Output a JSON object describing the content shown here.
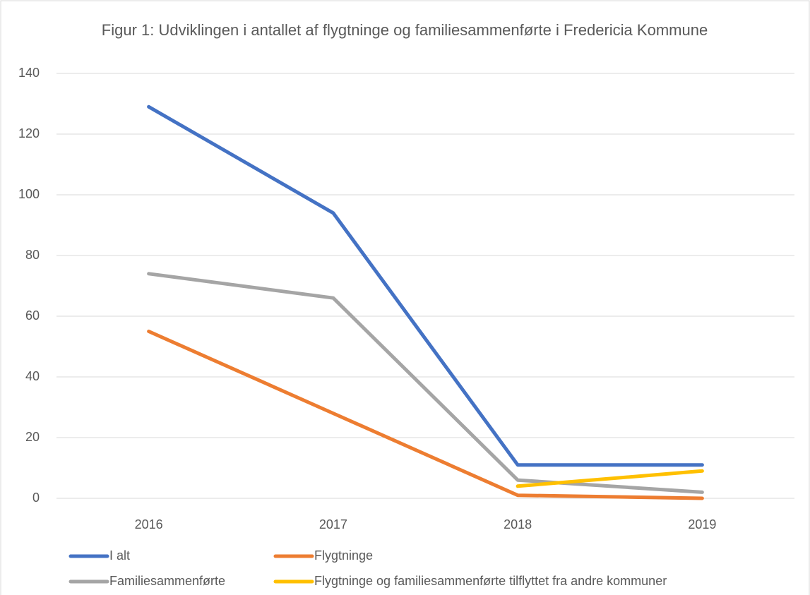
{
  "chart_data": {
    "type": "line",
    "title": "Figur 1: Udviklingen i antallet af flygtninge og familiesammenførte i Fredericia Kommune",
    "categories": [
      "2016",
      "2017",
      "2018",
      "2019"
    ],
    "series": [
      {
        "name": "I alt",
        "color": "#4472c4",
        "values": [
          129,
          94,
          11,
          11
        ]
      },
      {
        "name": "Flygtninge",
        "color": "#ed7d31",
        "values": [
          55,
          28,
          1,
          0
        ]
      },
      {
        "name": "Familiesammenførte",
        "color": "#a5a5a5",
        "values": [
          74,
          66,
          6,
          2
        ]
      },
      {
        "name": "Flygtninge og familiesammenførte tilflyttet fra andre kommuner",
        "color": "#ffc000",
        "values": [
          null,
          null,
          4,
          9
        ]
      }
    ],
    "ylim": [
      0,
      140
    ],
    "yticks": [
      0,
      20,
      40,
      60,
      80,
      100,
      120,
      140
    ],
    "grid": true,
    "legend": "bottom"
  }
}
